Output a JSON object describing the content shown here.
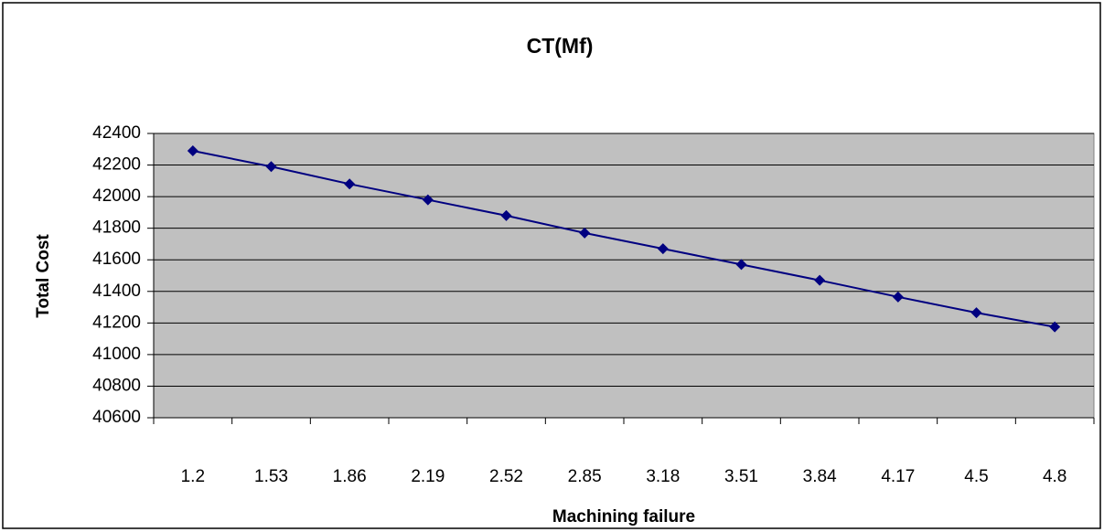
{
  "chart_data": {
    "type": "line",
    "title": "CT(Mf)",
    "x_label": "Machining failure",
    "y_label": "Total Cost",
    "categories": [
      "1.2",
      "1.53",
      "1.86",
      "2.19",
      "2.52",
      "2.85",
      "3.18",
      "3.51",
      "3.84",
      "4.17",
      "4.5",
      "4.8"
    ],
    "series": [
      {
        "name": "CT",
        "color": "#000080",
        "values": [
          42290,
          42190,
          42080,
          41980,
          41880,
          41770,
          41670,
          41570,
          41470,
          41365,
          41265,
          41175
        ]
      }
    ],
    "ylim": [
      40600,
      42400
    ],
    "yticks": [
      40600,
      40800,
      41000,
      41200,
      41400,
      41600,
      41800,
      42000,
      42200,
      42400
    ],
    "grid": true,
    "plot_background": "#c0c0c0"
  }
}
